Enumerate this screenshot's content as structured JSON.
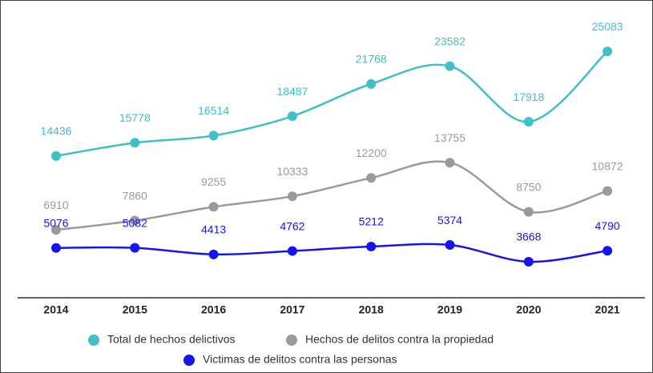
{
  "chart_data": {
    "type": "line",
    "categories": [
      "2014",
      "2015",
      "2016",
      "2017",
      "2018",
      "2019",
      "2020",
      "2021"
    ],
    "series": [
      {
        "name": "Total de hechos delictivos",
        "color": "#3fbfc6",
        "values": [
          14436,
          15778,
          16514,
          18487,
          21768,
          23582,
          17918,
          25083
        ]
      },
      {
        "name": "Hechos de delitos contra la propiedad",
        "color": "#9a9a9a",
        "values": [
          6910,
          7860,
          9255,
          10333,
          12200,
          13755,
          8750,
          10872
        ]
      },
      {
        "name": "Victimas de delitos contra las personas",
        "color": "#1414f0",
        "values": [
          5076,
          5082,
          4413,
          4762,
          5212,
          5374,
          3668,
          4790
        ]
      }
    ],
    "ylim": [
      0,
      29500
    ]
  }
}
